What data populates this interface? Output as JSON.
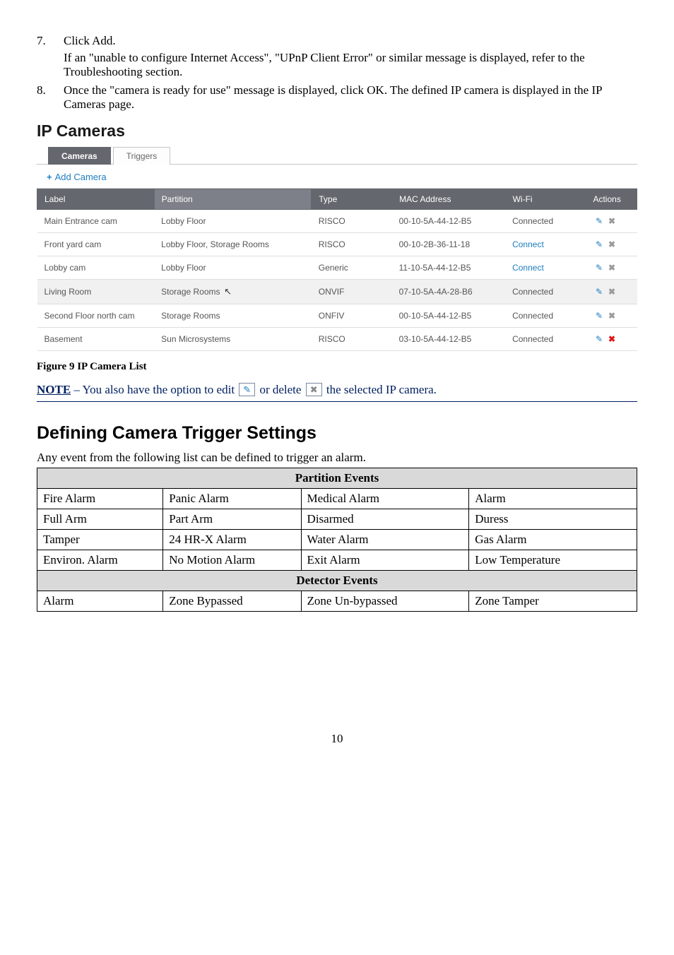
{
  "steps": [
    {
      "num": "7.",
      "line1": "Click Add.",
      "line2": "If an \"unable to configure Internet Access\", \"UPnP Client Error\" or similar message is displayed, refer to the Troubleshooting section."
    },
    {
      "num": "8.",
      "line1": "Once the \"camera is ready for use\" message is displayed, click OK. The defined IP camera is displayed in the IP Cameras page."
    }
  ],
  "ip_cams_heading": "IP Cameras",
  "tabs": {
    "cameras": "Cameras",
    "triggers": "Triggers"
  },
  "add_camera_label": "Add Camera",
  "cam_table": {
    "headers": {
      "label": "Label",
      "partition": "Partition",
      "type": "Type",
      "mac": "MAC Address",
      "wifi": "Wi-Fi",
      "actions": "Actions"
    },
    "rows": [
      {
        "label": "Main Entrance cam",
        "partition": "Lobby Floor",
        "type": "RISCO",
        "mac": "00-10-5A-44-12-B5",
        "wifi": "Connected",
        "wifi_color": "#555555",
        "alt": false,
        "cursor": false,
        "del_red": false
      },
      {
        "label": "Front yard cam",
        "partition": "Lobby Floor, Storage Rooms",
        "type": "RISCO",
        "mac": "00-10-2B-36-11-18",
        "wifi": "Connect",
        "wifi_color": "#1c7dc1",
        "alt": false,
        "cursor": false,
        "del_red": false
      },
      {
        "label": "Lobby cam",
        "partition": "Lobby Floor",
        "type": "Generic",
        "mac": "11-10-5A-44-12-B5",
        "wifi": "Connect",
        "wifi_color": "#1c7dc1",
        "alt": false,
        "cursor": false,
        "del_red": false
      },
      {
        "label": "Living Room",
        "partition": "Storage Rooms",
        "type": "ONVIF",
        "mac": "07-10-5A-4A-28-B6",
        "wifi": "Connected",
        "wifi_color": "#555555",
        "alt": true,
        "cursor": true,
        "del_red": false
      },
      {
        "label": "Second Floor north cam",
        "partition": "Storage Rooms",
        "type": "ONFIV",
        "mac": "00-10-5A-44-12-B5",
        "wifi": "Connected",
        "wifi_color": "#555555",
        "alt": false,
        "cursor": false,
        "del_red": false
      },
      {
        "label": "Basement",
        "partition": "Sun Microsystems",
        "type": "RISCO",
        "mac": "03-10-5A-44-12-B5",
        "wifi": "Connected",
        "wifi_color": "#555555",
        "alt": false,
        "cursor": false,
        "del_red": true
      }
    ]
  },
  "figure_caption": "Figure 9 IP Camera List",
  "note": {
    "label": "NOTE",
    "before": " – You also have the option to edit ",
    "mid": " or delete ",
    "after": " the selected IP camera."
  },
  "section2_heading": "Defining Camera Trigger Settings",
  "section2_intro": "Any event from the following list can be defined to trigger an alarm.",
  "events_table": {
    "section1": "Partition Events",
    "rows1": [
      [
        "Fire Alarm",
        "Panic Alarm",
        "Medical Alarm",
        "Alarm"
      ],
      [
        "Full Arm",
        "Part Arm",
        "Disarmed",
        "Duress"
      ],
      [
        "Tamper",
        "24 HR-X Alarm",
        "Water Alarm",
        "Gas Alarm"
      ],
      [
        "Environ. Alarm",
        "No Motion Alarm",
        "Exit Alarm",
        "Low Temperature"
      ]
    ],
    "section2": "Detector Events",
    "rows2": [
      [
        "Alarm",
        "Zone Bypassed",
        "Zone Un-bypassed",
        "Zone Tamper"
      ]
    ],
    "col_widths": [
      "21%",
      "23%",
      "28%",
      "28%"
    ]
  },
  "page_number": "10"
}
